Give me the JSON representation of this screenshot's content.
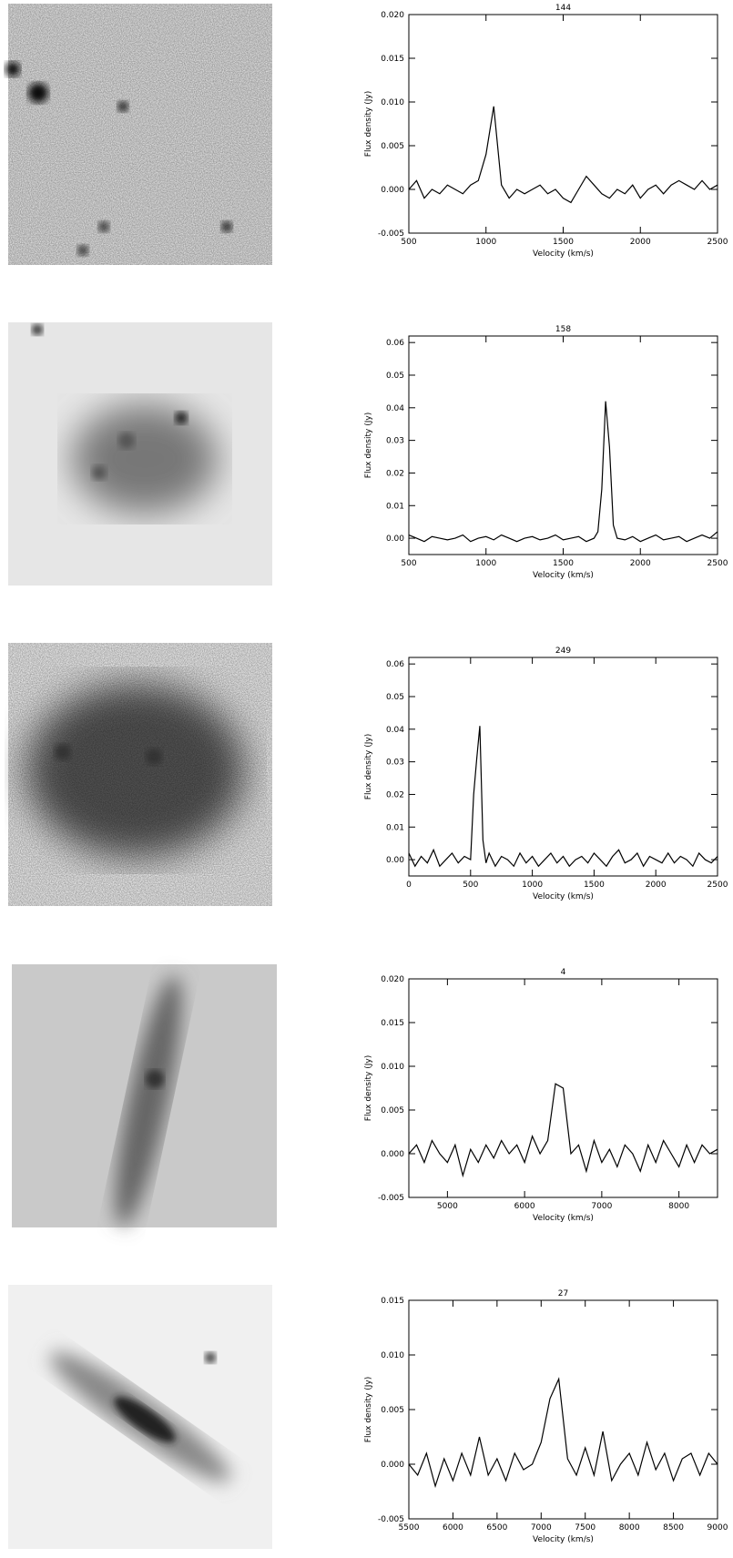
{
  "chart_data": [
    {
      "type": "line",
      "title": "144",
      "x_label": "Velocity (km/s)",
      "y_label": "Flux density (Jy)",
      "color": "#000000",
      "xlim": [
        500,
        2500
      ],
      "xticks": [
        500,
        1000,
        1500,
        2000,
        2500
      ],
      "ylim": [
        -0.005,
        0.02
      ],
      "yticks": [
        {
          "value": -0.005,
          "label": "-0.005"
        },
        {
          "value": 0,
          "label": "0.000"
        },
        {
          "value": 0.005,
          "label": "0.005"
        },
        {
          "value": 0.01,
          "label": "0.010"
        },
        {
          "value": 0.015,
          "label": "0.015"
        },
        {
          "value": 0.02,
          "label": "0.020"
        }
      ],
      "x": [
        500,
        550,
        600,
        650,
        700,
        750,
        800,
        850,
        900,
        950,
        1000,
        1050,
        1100,
        1150,
        1200,
        1250,
        1300,
        1350,
        1400,
        1450,
        1500,
        1550,
        1600,
        1650,
        1700,
        1750,
        1800,
        1850,
        1900,
        1950,
        2000,
        2050,
        2100,
        2150,
        2200,
        2250,
        2300,
        2350,
        2400,
        2450,
        2500
      ],
      "values": [
        0.0,
        0.001,
        -0.001,
        0.0,
        -0.0005,
        0.0005,
        0.0,
        -0.0005,
        0.0005,
        0.001,
        0.004,
        0.0095,
        0.0005,
        -0.001,
        0.0,
        -0.0005,
        0.0,
        0.0005,
        -0.0005,
        0.0,
        -0.001,
        -0.0015,
        0.0,
        0.0015,
        0.0005,
        -0.0005,
        -0.001,
        0.0,
        -0.0005,
        0.0005,
        -0.001,
        0.0,
        0.0005,
        -0.0005,
        0.0005,
        0.001,
        0.0005,
        0.0,
        0.001,
        0.0,
        0.0005
      ]
    },
    {
      "type": "line",
      "title": "158",
      "x_label": "Velocity (km/s)",
      "y_label": "Flux density (Jy)",
      "color": "#000000",
      "xlim": [
        500,
        2500
      ],
      "xticks": [
        500,
        1000,
        1500,
        2000,
        2500
      ],
      "ylim": [
        -0.005,
        0.062
      ],
      "yticks": [
        {
          "value": 0,
          "label": "0.00"
        },
        {
          "value": 0.01,
          "label": "0.01"
        },
        {
          "value": 0.02,
          "label": "0.02"
        },
        {
          "value": 0.03,
          "label": "0.03"
        },
        {
          "value": 0.04,
          "label": "0.04"
        },
        {
          "value": 0.05,
          "label": "0.05"
        },
        {
          "value": 0.06,
          "label": "0.06"
        }
      ],
      "x": [
        500,
        550,
        600,
        650,
        700,
        750,
        800,
        850,
        900,
        950,
        1000,
        1050,
        1100,
        1150,
        1200,
        1250,
        1300,
        1350,
        1400,
        1450,
        1500,
        1550,
        1600,
        1650,
        1700,
        1725,
        1750,
        1775,
        1800,
        1825,
        1850,
        1900,
        1950,
        2000,
        2050,
        2100,
        2150,
        2200,
        2250,
        2300,
        2350,
        2400,
        2450,
        2500
      ],
      "values": [
        0.001,
        0.0,
        -0.001,
        0.0005,
        0.0,
        -0.0005,
        0.0,
        0.001,
        -0.001,
        0.0,
        0.0005,
        -0.0005,
        0.001,
        0.0,
        -0.001,
        0.0,
        0.0005,
        -0.0005,
        0.0,
        0.001,
        -0.0005,
        0.0,
        0.0005,
        -0.001,
        0.0,
        0.002,
        0.015,
        0.042,
        0.028,
        0.004,
        0.0,
        -0.0005,
        0.0005,
        -0.001,
        0.0,
        0.001,
        -0.0005,
        0.0,
        0.0005,
        -0.001,
        0.0,
        0.001,
        0.0,
        0.002
      ]
    },
    {
      "type": "line",
      "title": "249",
      "x_label": "Velocity (km/s)",
      "y_label": "Flux density (Jy)",
      "color": "#000000",
      "xlim": [
        0,
        2500
      ],
      "xticks": [
        0,
        500,
        1000,
        1500,
        2000,
        2500
      ],
      "ylim": [
        -0.005,
        0.062
      ],
      "yticks": [
        {
          "value": 0,
          "label": "0.00"
        },
        {
          "value": 0.01,
          "label": "0.01"
        },
        {
          "value": 0.02,
          "label": "0.02"
        },
        {
          "value": 0.03,
          "label": "0.03"
        },
        {
          "value": 0.04,
          "label": "0.04"
        },
        {
          "value": 0.05,
          "label": "0.05"
        },
        {
          "value": 0.06,
          "label": "0.06"
        }
      ],
      "x": [
        0,
        50,
        100,
        150,
        200,
        250,
        300,
        350,
        400,
        450,
        500,
        525,
        550,
        575,
        600,
        625,
        650,
        700,
        750,
        800,
        850,
        900,
        950,
        1000,
        1050,
        1100,
        1150,
        1200,
        1250,
        1300,
        1350,
        1400,
        1450,
        1500,
        1550,
        1600,
        1650,
        1700,
        1750,
        1800,
        1850,
        1900,
        1950,
        2000,
        2050,
        2100,
        2150,
        2200,
        2250,
        2300,
        2350,
        2400,
        2450,
        2500
      ],
      "values": [
        0.002,
        -0.002,
        0.001,
        -0.001,
        0.003,
        -0.002,
        0.0,
        0.002,
        -0.001,
        0.001,
        0.0,
        0.02,
        0.031,
        0.041,
        0.006,
        -0.001,
        0.002,
        -0.002,
        0.001,
        0.0,
        -0.002,
        0.002,
        -0.001,
        0.001,
        -0.002,
        0.0,
        0.002,
        -0.001,
        0.001,
        -0.002,
        0.0,
        0.001,
        -0.001,
        0.002,
        0.0,
        -0.002,
        0.001,
        0.003,
        -0.001,
        0.0,
        0.002,
        -0.002,
        0.001,
        0.0,
        -0.001,
        0.002,
        -0.001,
        0.001,
        0.0,
        -0.002,
        0.002,
        0.0,
        -0.001,
        0.001
      ]
    },
    {
      "type": "line",
      "title": "4",
      "x_label": "Velocity (km/s)",
      "y_label": "Flux density (Jy)",
      "color": "#000000",
      "xlim": [
        4500,
        8500
      ],
      "xticks": [
        5000,
        6000,
        7000,
        8000
      ],
      "ylim": [
        -0.005,
        0.02
      ],
      "yticks": [
        {
          "value": -0.005,
          "label": "-0.005"
        },
        {
          "value": 0,
          "label": "0.000"
        },
        {
          "value": 0.005,
          "label": "0.005"
        },
        {
          "value": 0.01,
          "label": "0.010"
        },
        {
          "value": 0.015,
          "label": "0.015"
        },
        {
          "value": 0.02,
          "label": "0.020"
        }
      ],
      "x": [
        4500,
        4600,
        4700,
        4800,
        4900,
        5000,
        5100,
        5200,
        5300,
        5400,
        5500,
        5600,
        5700,
        5800,
        5900,
        6000,
        6100,
        6200,
        6300,
        6400,
        6500,
        6600,
        6700,
        6800,
        6900,
        7000,
        7100,
        7200,
        7300,
        7400,
        7500,
        7600,
        7700,
        7800,
        7900,
        8000,
        8100,
        8200,
        8300,
        8400,
        8500
      ],
      "values": [
        0.0,
        0.001,
        -0.001,
        0.0015,
        0.0,
        -0.001,
        0.001,
        -0.0025,
        0.0005,
        -0.001,
        0.001,
        -0.0005,
        0.0015,
        0.0,
        0.001,
        -0.001,
        0.002,
        0.0,
        0.0015,
        0.008,
        0.0075,
        0.0,
        0.001,
        -0.002,
        0.0015,
        -0.001,
        0.0005,
        -0.0015,
        0.001,
        0.0,
        -0.002,
        0.001,
        -0.001,
        0.0015,
        0.0,
        -0.0015,
        0.001,
        -0.001,
        0.001,
        0.0,
        0.0005
      ]
    },
    {
      "type": "line",
      "title": "27",
      "x_label": "Velocity (km/s)",
      "y_label": "Flux density (Jy)",
      "color": "#000000",
      "xlim": [
        5500,
        9000
      ],
      "xticks": [
        5500,
        6000,
        6500,
        7000,
        7500,
        8000,
        8500,
        9000
      ],
      "ylim": [
        -0.005,
        0.015
      ],
      "yticks": [
        {
          "value": -0.005,
          "label": "-0.005"
        },
        {
          "value": 0,
          "label": "0.000"
        },
        {
          "value": 0.005,
          "label": "0.005"
        },
        {
          "value": 0.01,
          "label": "0.010"
        },
        {
          "value": 0.015,
          "label": "0.015"
        }
      ],
      "x": [
        5500,
        5600,
        5700,
        5800,
        5900,
        6000,
        6100,
        6200,
        6300,
        6400,
        6500,
        6600,
        6700,
        6800,
        6900,
        7000,
        7100,
        7200,
        7300,
        7400,
        7500,
        7600,
        7700,
        7800,
        7900,
        8000,
        8100,
        8200,
        8300,
        8400,
        8500,
        8600,
        8700,
        8800,
        8900,
        9000
      ],
      "values": [
        0.0,
        -0.001,
        0.001,
        -0.002,
        0.0005,
        -0.0015,
        0.001,
        -0.001,
        0.0025,
        -0.001,
        0.0005,
        -0.0015,
        0.001,
        -0.0005,
        0.0,
        0.002,
        0.006,
        0.0078,
        0.0005,
        -0.001,
        0.0015,
        -0.001,
        0.003,
        -0.0015,
        0.0,
        0.001,
        -0.001,
        0.002,
        -0.0005,
        0.001,
        -0.0015,
        0.0005,
        0.001,
        -0.001,
        0.001,
        0.0
      ]
    }
  ]
}
